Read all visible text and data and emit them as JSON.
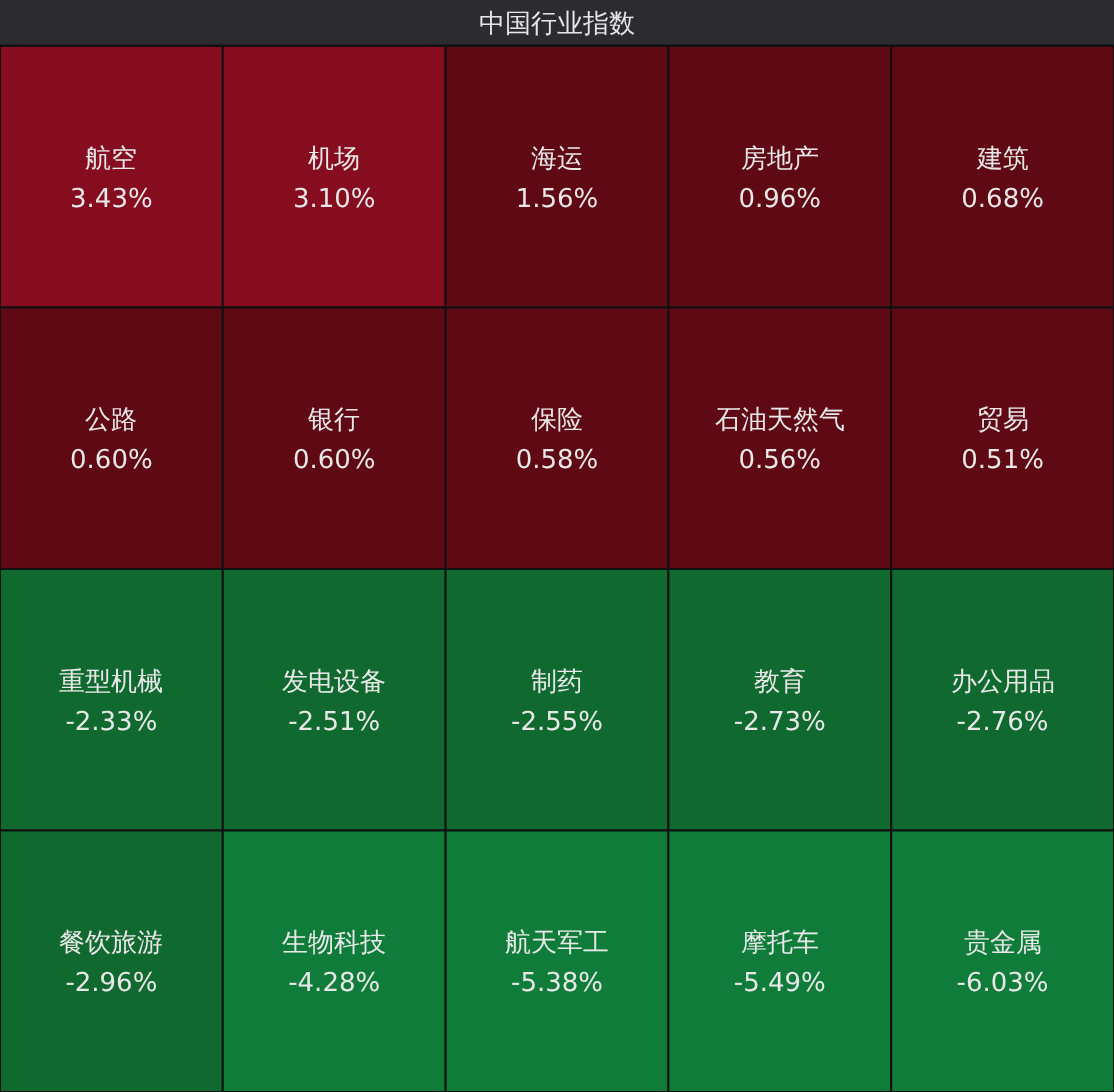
{
  "chart_data": {
    "type": "other",
    "title": "中国行业指数",
    "categories": [
      "航空",
      "机场",
      "海运",
      "房地产",
      "建筑",
      "公路",
      "银行",
      "保险",
      "石油天然气",
      "贸易",
      "重型机械",
      "发电设备",
      "制药",
      "教育",
      "办公用品",
      "餐饮旅游",
      "生物科技",
      "航天军工",
      "摩托车",
      "贵金属"
    ],
    "values": [
      3.43,
      3.1,
      1.56,
      0.96,
      0.68,
      0.6,
      0.6,
      0.58,
      0.56,
      0.51,
      -2.33,
      -2.51,
      -2.55,
      -2.73,
      -2.76,
      -2.96,
      -4.28,
      -5.38,
      -5.49,
      -6.03
    ],
    "value_labels": [
      "3.43%",
      "3.10%",
      "1.56%",
      "0.96%",
      "0.68%",
      "0.60%",
      "0.60%",
      "0.58%",
      "0.56%",
      "0.51%",
      "-2.33%",
      "-2.51%",
      "-2.55%",
      "-2.73%",
      "-2.76%",
      "-2.96%",
      "-4.28%",
      "-5.38%",
      "-5.49%",
      "-6.03%"
    ]
  }
}
